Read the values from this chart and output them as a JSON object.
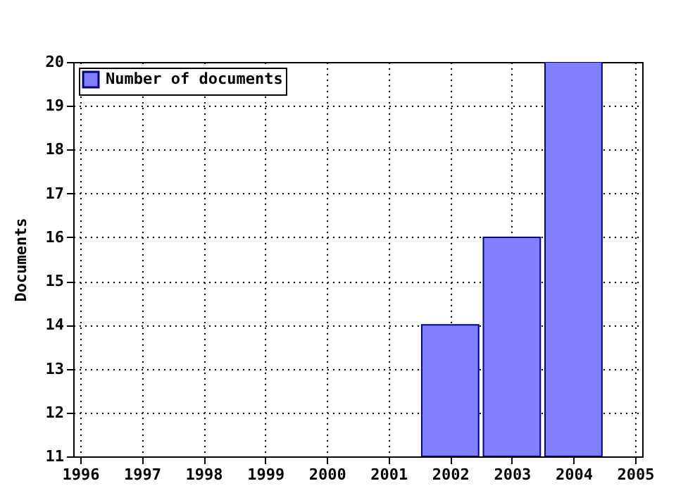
{
  "chart_data": {
    "type": "bar",
    "ylabel": "Documents",
    "x": [
      2002,
      2003,
      2004
    ],
    "series": [
      {
        "name": "Number of documents",
        "color": "#8080ff",
        "values": [
          14,
          16,
          20
        ]
      }
    ],
    "xlim": [
      1996,
      2005
    ],
    "xticks": [
      1996,
      1997,
      1998,
      1999,
      2000,
      2001,
      2002,
      2003,
      2004,
      2005
    ],
    "ylim": [
      11,
      20
    ],
    "yticks": [
      11,
      12,
      13,
      14,
      15,
      16,
      17,
      18,
      19,
      20
    ],
    "grid": true,
    "legend": "top left"
  }
}
